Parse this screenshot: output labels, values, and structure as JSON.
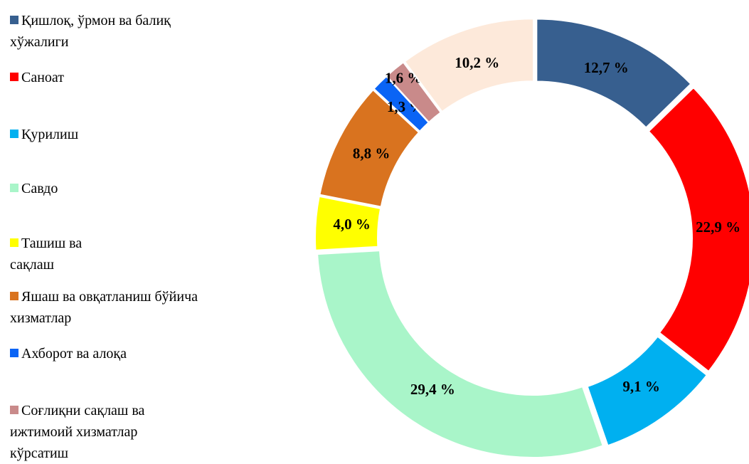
{
  "chart_data": {
    "type": "donut",
    "categories": [
      "Қишлоқ, ўрмон ва балиқ хўжалиги",
      "Саноат",
      "Қурилиш",
      "Савдо",
      "Ташиш ва сақлаш",
      "Яшаш ва овқатланиш бўйича хизматлар",
      "Ахборот ва алоқа",
      "Соғлиқни сақлаш ва ижтимоий хизматлар кўрсатиш",
      null
    ],
    "values": [
      12.7,
      22.9,
      9.1,
      29.4,
      4.0,
      8.8,
      1.3,
      1.6,
      10.2
    ],
    "value_labels": [
      "12,7 %",
      "22,9 %",
      "9,1 %",
      "29,4 %",
      "4,0 %",
      "8,8 %",
      "1,3 %",
      "1,6 %",
      "10,2 %"
    ],
    "colors": [
      "#375f8f",
      "#ff0000",
      "#00b0f0",
      "#a9f5c9",
      "#ffff00",
      "#d9731f",
      "#0a64f5",
      "#c98a8a",
      "#fde9da"
    ],
    "legend": "left"
  }
}
